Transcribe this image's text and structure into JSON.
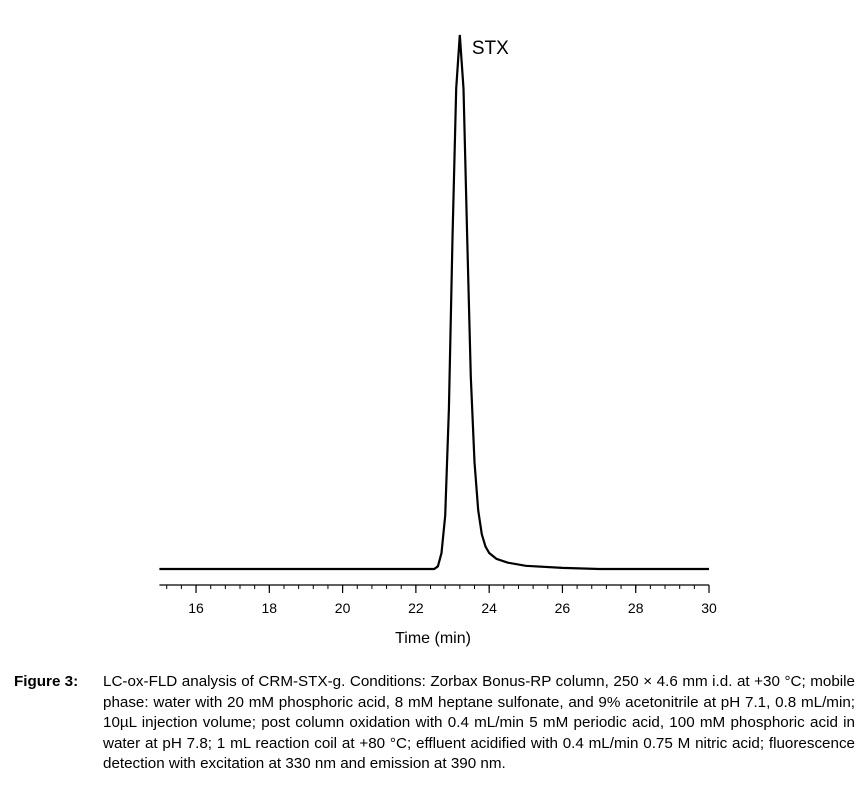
{
  "chart_data": {
    "type": "line",
    "title": "",
    "xlabel": "Time (min)",
    "ylabel": "",
    "xlim": [
      15,
      30
    ],
    "ylim": [
      0,
      100
    ],
    "x_ticks": [
      16,
      18,
      20,
      22,
      24,
      26,
      28,
      30
    ],
    "x_minor_step": 0.4,
    "y_axis_shown": false,
    "grid": false,
    "line_color": "#000000",
    "annotations": [
      {
        "text": "STX",
        "x": 23.2
      }
    ],
    "series": [
      {
        "x": [
          15,
          22.5,
          22.6,
          22.7,
          22.8,
          22.9,
          23.0,
          23.1,
          23.2,
          23.3,
          23.4,
          23.5,
          23.6,
          23.7,
          23.8,
          23.9,
          24.0,
          24.2,
          24.5,
          25.0,
          26.0,
          27.0,
          30
        ],
        "y": [
          0,
          0,
          0.5,
          3,
          10,
          30,
          62,
          90,
          100,
          90,
          62,
          36,
          20,
          11,
          6.5,
          4.2,
          3,
          1.9,
          1.2,
          0.6,
          0.2,
          0,
          0
        ]
      }
    ]
  },
  "caption": {
    "label": "Figure 3:",
    "text": "LC-ox-FLD analysis of CRM-STX-g. Conditions: Zorbax Bonus-RP column, 250 × 4.6 mm i.d. at +30 °C; mobile phase: water with 20 mM phosphoric acid, 8 mM heptane sulfonate, and 9% acetonitrile at pH 7.1, 0.8 mL/min; 10µL injection volume; post column oxidation with 0.4 mL/min 5 mM periodic acid, 100 mM phosphoric acid in water at pH 7.8; 1 mL reaction coil at +80 °C; effluent acidified with 0.4 mL/min 0.75 M nitric acid; fluorescence detection with excitation at 330 nm and emission at 390 nm."
  }
}
